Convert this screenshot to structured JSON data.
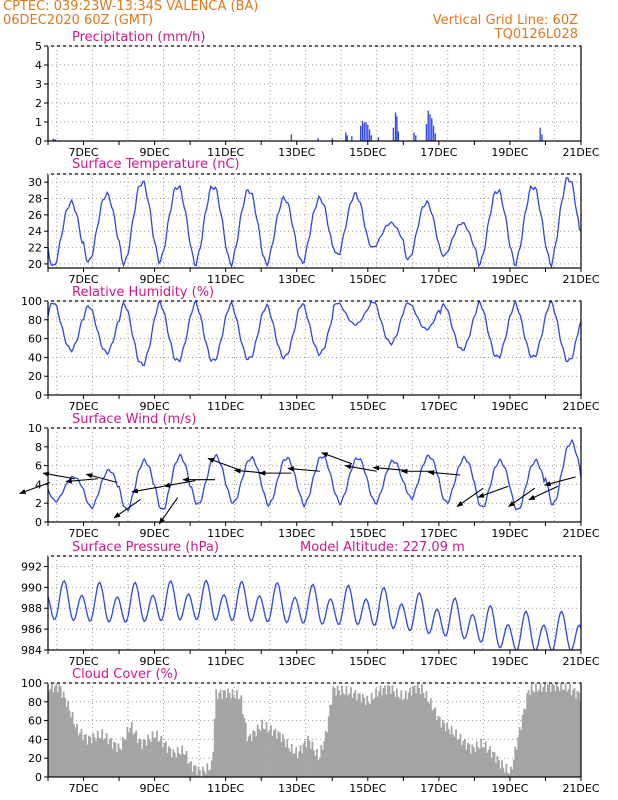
{
  "header": {
    "line1": "CPTEC:   039:23W-13:34S   VALENCA (BA)",
    "line2": "06DEC2020 60Z (GMT)",
    "right1": "Vertical Grid Line: 60Z",
    "right2": "TQ0126L028",
    "colors": {
      "header": "#e0781e",
      "title": "#d4148c",
      "axis": "#000000",
      "grid": "#9a9a9a",
      "line": "#2f44ee",
      "bar": "#2f44ee",
      "cloud": "#a4a4a4",
      "arrow": "#000000"
    }
  },
  "date_labels": [
    "7DEC",
    "9DEC",
    "11DEC",
    "13DEC",
    "15DEC",
    "17DEC",
    "19DEC",
    "21DEC"
  ],
  "extra": {
    "model_altitude": "Model Altitude: 227.09 m"
  },
  "chart_data": [
    {
      "id": "precip",
      "type": "bar",
      "title": "Precipitation (mm/h)",
      "units": "mm/h",
      "ylim": [
        0,
        5
      ],
      "yticks": [
        0,
        1,
        2,
        3,
        4,
        5
      ],
      "x_range": [
        "06DEC2020 00Z",
        "21DEC2020 00Z"
      ],
      "grid": true,
      "color": "#2f44ee",
      "series": [
        {
          "x": 6.15,
          "y": 0.12
        },
        {
          "x": 6.2,
          "y": 0.1
        },
        {
          "x": 12.85,
          "y": 0.35
        },
        {
          "x": 13.6,
          "y": 0.15
        },
        {
          "x": 14.0,
          "y": 0.15
        },
        {
          "x": 14.38,
          "y": 0.45
        },
        {
          "x": 14.42,
          "y": 0.3
        },
        {
          "x": 14.55,
          "y": 0.25
        },
        {
          "x": 14.8,
          "y": 0.8
        },
        {
          "x": 14.85,
          "y": 1.05
        },
        {
          "x": 14.9,
          "y": 0.95
        },
        {
          "x": 14.95,
          "y": 1.0
        },
        {
          "x": 15.0,
          "y": 0.85
        },
        {
          "x": 15.05,
          "y": 0.6
        },
        {
          "x": 15.1,
          "y": 0.3
        },
        {
          "x": 15.3,
          "y": 0.2
        },
        {
          "x": 15.72,
          "y": 0.7
        },
        {
          "x": 15.78,
          "y": 1.5
        },
        {
          "x": 15.82,
          "y": 1.3
        },
        {
          "x": 15.86,
          "y": 0.5
        },
        {
          "x": 16.3,
          "y": 0.45
        },
        {
          "x": 16.35,
          "y": 0.3
        },
        {
          "x": 16.65,
          "y": 0.9
        },
        {
          "x": 16.7,
          "y": 1.6
        },
        {
          "x": 16.75,
          "y": 1.4
        },
        {
          "x": 16.8,
          "y": 1.2
        },
        {
          "x": 16.85,
          "y": 0.8
        },
        {
          "x": 16.9,
          "y": 0.4
        },
        {
          "x": 19.85,
          "y": 0.7
        },
        {
          "x": 19.9,
          "y": 0.35
        }
      ]
    },
    {
      "id": "temp",
      "type": "line",
      "title": "Surface Temperature (nC)",
      "units": "C",
      "ylim": [
        19.5,
        31
      ],
      "yticks": [
        20,
        22,
        24,
        26,
        28,
        30
      ],
      "x_range": [
        "06DEC2020 00Z",
        "21DEC2020 00Z"
      ],
      "grid": true,
      "color": "#2f44ee",
      "daily_min": [
        19.6,
        20.2,
        20.0,
        20.3,
        20.0,
        20.0,
        20.0,
        20.1,
        21.0,
        22.0,
        20.5,
        21.0,
        20.0,
        20.0,
        20.0
      ],
      "daily_max": [
        27.5,
        28.5,
        30.0,
        29.5,
        29.5,
        29.0,
        28.0,
        28.0,
        28.5,
        25.0,
        27.5,
        25.0,
        29.0,
        29.5,
        30.5
      ],
      "end_value": 24.0
    },
    {
      "id": "rh",
      "type": "line",
      "title": "Relative Humidity (%)",
      "units": "%",
      "ylim": [
        0,
        100
      ],
      "yticks": [
        0,
        20,
        40,
        60,
        80,
        100
      ],
      "x_range": [
        "06DEC2020 00Z",
        "21DEC2020 00Z"
      ],
      "grid": true,
      "color": "#2f44ee",
      "daily_max": [
        99,
        95,
        97,
        98,
        98,
        97,
        95,
        97,
        98,
        100,
        98,
        96,
        98,
        97,
        99
      ],
      "daily_min": [
        48,
        45,
        32,
        36,
        36,
        38,
        40,
        44,
        75,
        55,
        70,
        48,
        40,
        40,
        36
      ],
      "end_value": 78
    },
    {
      "id": "wind",
      "type": "line",
      "title": "Surface Wind (m/s)",
      "units": "m/s",
      "ylim": [
        0,
        10
      ],
      "yticks": [
        0,
        2,
        4,
        6,
        8,
        10
      ],
      "x_range": [
        "06DEC2020 00Z",
        "21DEC2020 00Z"
      ],
      "grid": true,
      "color": "#2f44ee",
      "daily_min": [
        2.2,
        1.5,
        1.2,
        1.2,
        1.8,
        2.0,
        1.8,
        1.8,
        2.0,
        2.0,
        2.5,
        2.0,
        1.5,
        1.2,
        1.8
      ],
      "daily_max": [
        4.8,
        5.5,
        6.5,
        7.0,
        7.0,
        6.8,
        6.8,
        7.0,
        6.8,
        6.5,
        7.0,
        6.8,
        6.5,
        6.5,
        8.5
      ],
      "vectors": [
        {
          "x": 6.05,
          "speed": 4.2,
          "dir_deg": 200
        },
        {
          "x": 6.75,
          "speed": 4.6,
          "dir_deg": 170
        },
        {
          "x": 7.4,
          "speed": 4.6,
          "dir_deg": 185
        },
        {
          "x": 7.95,
          "speed": 4.2,
          "dir_deg": 165
        },
        {
          "x": 8.6,
          "speed": 2.4,
          "dir_deg": 215
        },
        {
          "x": 9.25,
          "speed": 3.8,
          "dir_deg": 190
        },
        {
          "x": 9.65,
          "speed": 2.6,
          "dir_deg": 235
        },
        {
          "x": 10.15,
          "speed": 4.4,
          "dir_deg": 190
        },
        {
          "x": 10.7,
          "speed": 4.5,
          "dir_deg": 180
        },
        {
          "x": 11.35,
          "speed": 5.6,
          "dir_deg": 160
        },
        {
          "x": 12.15,
          "speed": 5.2,
          "dir_deg": 175
        },
        {
          "x": 12.85,
          "speed": 5.2,
          "dir_deg": 180
        },
        {
          "x": 13.65,
          "speed": 5.4,
          "dir_deg": 175
        },
        {
          "x": 14.55,
          "speed": 6.2,
          "dir_deg": 160
        },
        {
          "x": 15.25,
          "speed": 5.4,
          "dir_deg": 170
        },
        {
          "x": 16.05,
          "speed": 5.5,
          "dir_deg": 175
        },
        {
          "x": 16.85,
          "speed": 5.4,
          "dir_deg": 180
        },
        {
          "x": 17.6,
          "speed": 5.0,
          "dir_deg": 175
        },
        {
          "x": 18.25,
          "speed": 3.6,
          "dir_deg": 215
        },
        {
          "x": 18.95,
          "speed": 3.8,
          "dir_deg": 200
        },
        {
          "x": 19.7,
          "speed": 3.6,
          "dir_deg": 215
        },
        {
          "x": 20.35,
          "speed": 3.8,
          "dir_deg": 205
        },
        {
          "x": 20.85,
          "speed": 4.8,
          "dir_deg": 195
        }
      ]
    },
    {
      "id": "pres",
      "type": "line",
      "title": "Surface Pressure (hPa)",
      "units": "hPa",
      "ylim": [
        984,
        993
      ],
      "yticks": [
        984,
        986,
        988,
        990,
        992
      ],
      "x_range": [
        "06DEC2020 00Z",
        "21DEC2020 00Z"
      ],
      "grid": true,
      "color": "#2f44ee",
      "trend": [
        [
          6,
          988.5
        ],
        [
          8,
          988.2
        ],
        [
          10,
          988.5
        ],
        [
          12,
          988.3
        ],
        [
          14,
          988.0
        ],
        [
          15,
          988.0
        ],
        [
          16,
          987.5
        ],
        [
          17,
          987.0
        ],
        [
          18,
          986.5
        ],
        [
          19,
          985.5
        ],
        [
          21,
          985.5
        ]
      ],
      "amplitude": 2.2
    },
    {
      "id": "cloud",
      "type": "area",
      "title": "Cloud Cover (%)",
      "units": "%",
      "ylim": [
        0,
        100
      ],
      "yticks": [
        0,
        20,
        40,
        60,
        80,
        100
      ],
      "x_range": [
        "06DEC2020 00Z",
        "21DEC2020 00Z"
      ],
      "grid": true,
      "color": "#a4a4a4",
      "profile": [
        [
          6.0,
          95
        ],
        [
          6.3,
          96
        ],
        [
          6.5,
          80
        ],
        [
          6.8,
          50
        ],
        [
          7.1,
          40
        ],
        [
          7.5,
          45
        ],
        [
          8.0,
          30
        ],
        [
          8.3,
          55
        ],
        [
          8.6,
          35
        ],
        [
          9.0,
          45
        ],
        [
          9.5,
          25
        ],
        [
          9.8,
          28
        ],
        [
          10.0,
          12
        ],
        [
          10.3,
          5
        ],
        [
          10.6,
          12
        ],
        [
          10.7,
          88
        ],
        [
          11.0,
          90
        ],
        [
          11.4,
          85
        ],
        [
          11.6,
          40
        ],
        [
          12.0,
          55
        ],
        [
          12.5,
          45
        ],
        [
          12.8,
          30
        ],
        [
          13.0,
          25
        ],
        [
          13.3,
          40
        ],
        [
          13.6,
          20
        ],
        [
          13.8,
          45
        ],
        [
          14.0,
          93
        ],
        [
          14.5,
          90
        ],
        [
          14.8,
          85
        ],
        [
          15.0,
          80
        ],
        [
          15.3,
          92
        ],
        [
          15.6,
          95
        ],
        [
          15.8,
          88
        ],
        [
          16.0,
          85
        ],
        [
          16.3,
          95
        ],
        [
          16.5,
          93
        ],
        [
          16.8,
          75
        ],
        [
          17.0,
          60
        ],
        [
          17.3,
          50
        ],
        [
          17.6,
          40
        ],
        [
          17.9,
          30
        ],
        [
          18.2,
          35
        ],
        [
          18.5,
          25
        ],
        [
          18.8,
          10
        ],
        [
          19.0,
          5
        ],
        [
          19.2,
          40
        ],
        [
          19.5,
          92
        ],
        [
          19.8,
          95
        ],
        [
          20.2,
          97
        ],
        [
          20.6,
          95
        ],
        [
          20.9,
          88
        ],
        [
          21.0,
          85
        ]
      ]
    }
  ]
}
